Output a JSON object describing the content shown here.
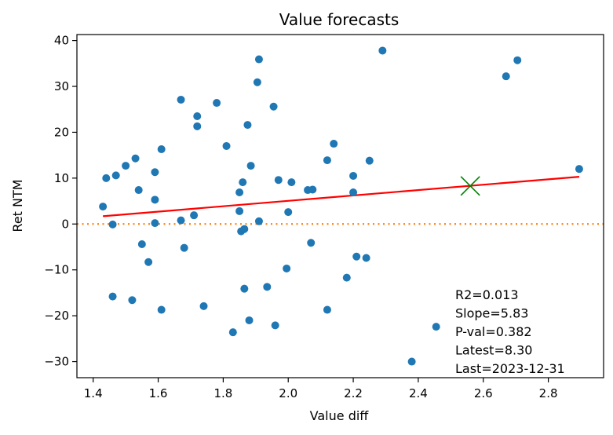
{
  "chart_data": {
    "type": "scatter",
    "title": "Value forecasts",
    "xlabel": "Value diff",
    "ylabel": "Ret NTM",
    "xlim": [
      1.35,
      2.97
    ],
    "ylim": [
      -33.5,
      41.3
    ],
    "x_ticks": [
      1.4,
      1.6,
      1.8,
      2.0,
      2.2,
      2.4,
      2.6,
      2.8
    ],
    "x_tick_labels": [
      "1.4",
      "1.6",
      "1.8",
      "2.0",
      "2.2",
      "2.4",
      "2.6",
      "2.8"
    ],
    "y_ticks": [
      -30,
      -20,
      -10,
      0,
      10,
      20,
      30,
      40
    ],
    "y_tick_labels": [
      "−30",
      "−20",
      "−10",
      "0",
      "10",
      "20",
      "30",
      "40"
    ],
    "grid": false,
    "colors": {
      "points": "#1f77b4",
      "fit": "#ff0000",
      "zero_line": "#ff7f0e",
      "latest": "#008000"
    },
    "points": [
      {
        "x": 1.43,
        "y": 3.8
      },
      {
        "x": 1.44,
        "y": 10.0
      },
      {
        "x": 1.46,
        "y": -0.1
      },
      {
        "x": 1.46,
        "y": -15.8
      },
      {
        "x": 1.47,
        "y": 10.6
      },
      {
        "x": 1.5,
        "y": 12.7
      },
      {
        "x": 1.52,
        "y": -16.6
      },
      {
        "x": 1.53,
        "y": 14.3
      },
      {
        "x": 1.54,
        "y": 7.4
      },
      {
        "x": 1.55,
        "y": -4.4
      },
      {
        "x": 1.57,
        "y": -8.3
      },
      {
        "x": 1.59,
        "y": 0.2
      },
      {
        "x": 1.59,
        "y": 5.3
      },
      {
        "x": 1.59,
        "y": 11.3
      },
      {
        "x": 1.61,
        "y": 16.3
      },
      {
        "x": 1.61,
        "y": -18.7
      },
      {
        "x": 1.67,
        "y": 27.1
      },
      {
        "x": 1.67,
        "y": 0.8
      },
      {
        "x": 1.68,
        "y": -5.2
      },
      {
        "x": 1.71,
        "y": 1.9
      },
      {
        "x": 1.72,
        "y": 21.3
      },
      {
        "x": 1.72,
        "y": 23.5
      },
      {
        "x": 1.74,
        "y": -17.9
      },
      {
        "x": 1.78,
        "y": 26.4
      },
      {
        "x": 1.81,
        "y": 17.0
      },
      {
        "x": 1.83,
        "y": -23.6
      },
      {
        "x": 1.85,
        "y": 6.9
      },
      {
        "x": 1.85,
        "y": 2.8
      },
      {
        "x": 1.855,
        "y": -1.6
      },
      {
        "x": 1.86,
        "y": 9.1
      },
      {
        "x": 1.865,
        "y": -1.1
      },
      {
        "x": 1.865,
        "y": -14.1
      },
      {
        "x": 1.875,
        "y": 21.6
      },
      {
        "x": 1.88,
        "y": -21.0
      },
      {
        "x": 1.885,
        "y": 12.7
      },
      {
        "x": 1.905,
        "y": 30.9
      },
      {
        "x": 1.91,
        "y": 35.9
      },
      {
        "x": 1.91,
        "y": 0.6
      },
      {
        "x": 1.935,
        "y": -13.7
      },
      {
        "x": 1.955,
        "y": 25.6
      },
      {
        "x": 1.96,
        "y": -22.1
      },
      {
        "x": 1.97,
        "y": 9.6
      },
      {
        "x": 1.995,
        "y": -9.7
      },
      {
        "x": 2.0,
        "y": 2.6
      },
      {
        "x": 2.01,
        "y": 9.1
      },
      {
        "x": 2.06,
        "y": 7.4
      },
      {
        "x": 2.07,
        "y": -4.1
      },
      {
        "x": 2.075,
        "y": 7.5
      },
      {
        "x": 2.12,
        "y": 13.9
      },
      {
        "x": 2.12,
        "y": -18.7
      },
      {
        "x": 2.14,
        "y": 17.5
      },
      {
        "x": 2.18,
        "y": -11.7
      },
      {
        "x": 2.2,
        "y": 10.5
      },
      {
        "x": 2.2,
        "y": 6.9
      },
      {
        "x": 2.21,
        "y": -7.1
      },
      {
        "x": 2.24,
        "y": -7.4
      },
      {
        "x": 2.25,
        "y": 13.8
      },
      {
        "x": 2.29,
        "y": 37.8
      },
      {
        "x": 2.38,
        "y": -30.0
      },
      {
        "x": 2.455,
        "y": -22.4
      },
      {
        "x": 2.67,
        "y": 32.2
      },
      {
        "x": 2.705,
        "y": 35.7
      },
      {
        "x": 2.895,
        "y": 12.0
      }
    ],
    "fit_line": {
      "x": [
        1.43,
        2.895
      ],
      "y": [
        1.7,
        10.3
      ]
    },
    "zero_line": 0,
    "latest_point": {
      "x": 2.56,
      "y": 8.3
    },
    "annotation_lines": [
      "R2=0.013",
      "Slope=5.83",
      "P-val=0.382",
      "Latest=8.30",
      "Last=2023-12-31"
    ]
  }
}
